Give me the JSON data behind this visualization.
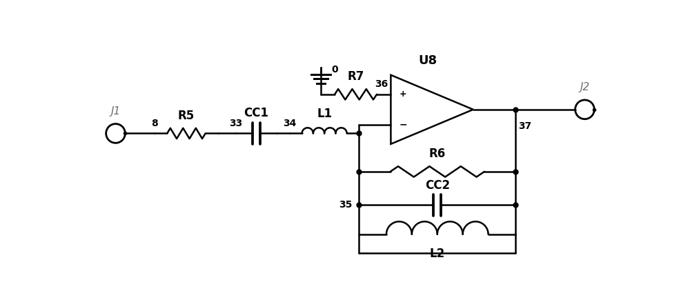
{
  "bg_color": "#ffffff",
  "lc": "#000000",
  "gray": "#707070",
  "lw": 1.8,
  "figsize": [
    10.0,
    4.38
  ],
  "dpi": 100,
  "xlim": [
    0,
    10.0
  ],
  "ylim": [
    0,
    4.38
  ]
}
